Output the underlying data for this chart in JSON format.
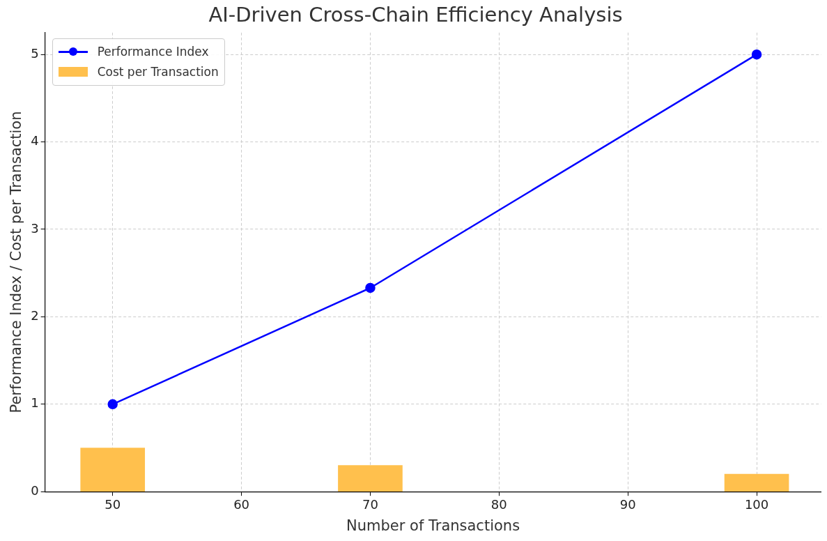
{
  "chart_data": {
    "type": "line",
    "title": "AI-Driven Cross-Chain Efficiency Analysis",
    "xlabel": "Number of Transactions",
    "ylabel": "Performance Index / Cost per Transaction",
    "x": [
      50,
      70,
      100
    ],
    "series": [
      {
        "name": "Performance Index",
        "color": "#0000ff",
        "values": [
          1,
          2.33,
          5
        ],
        "marker": "circle"
      },
      {
        "name": "Cost per Transaction",
        "type": "bar",
        "color": "#ffc04d",
        "values": [
          0.5,
          0.3,
          0.2
        ]
      }
    ],
    "xlim": [
      44.75,
      105
    ],
    "xticks": [
      50,
      60,
      70,
      80,
      90,
      100
    ],
    "ylim": [
      0,
      5.25
    ],
    "yticks": [
      0,
      1,
      2,
      3,
      4,
      5
    ],
    "grid": true,
    "legend": "top left"
  }
}
